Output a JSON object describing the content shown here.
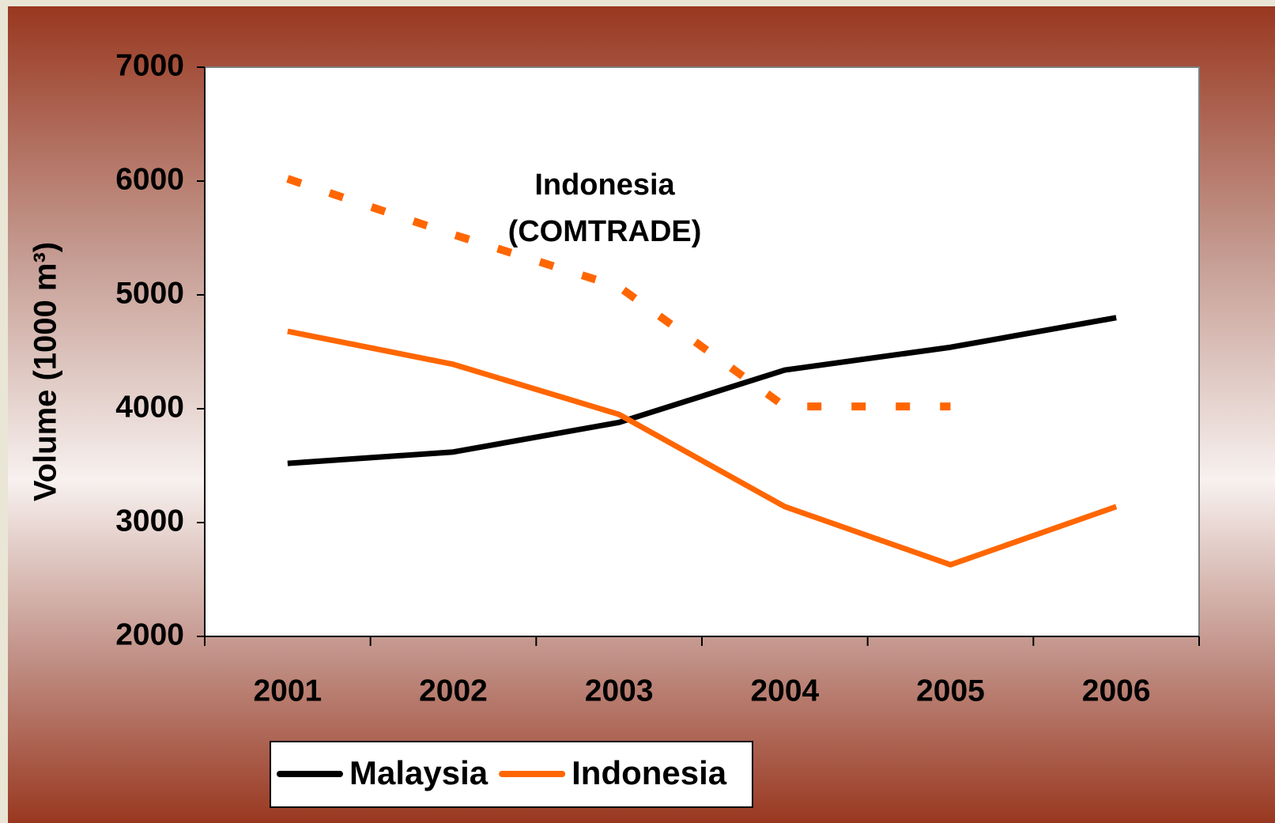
{
  "chart_data": {
    "type": "line",
    "ylabel": "Volume (1000 m³)",
    "categories": [
      "2001",
      "2002",
      "2003",
      "2004",
      "2005",
      "2006"
    ],
    "series": [
      {
        "name": "Malaysia",
        "color": "#000000",
        "values": [
          3520,
          3620,
          3880,
          4340,
          4540,
          4800
        ]
      },
      {
        "name": "Indonesia",
        "color": "#ff6600",
        "values": [
          4680,
          4390,
          3950,
          3140,
          2630,
          3140
        ]
      },
      {
        "color": "#ff6600",
        "dashed": true,
        "values": [
          6020,
          5530,
          5070,
          4020,
          4020,
          null
        ]
      }
    ],
    "annotation": [
      "Indonesia",
      "(COMTRADE)"
    ],
    "ylim": [
      2000,
      7000
    ],
    "yticks": [
      2000,
      3000,
      4000,
      5000,
      6000,
      7000
    ],
    "legend": "bottom"
  }
}
